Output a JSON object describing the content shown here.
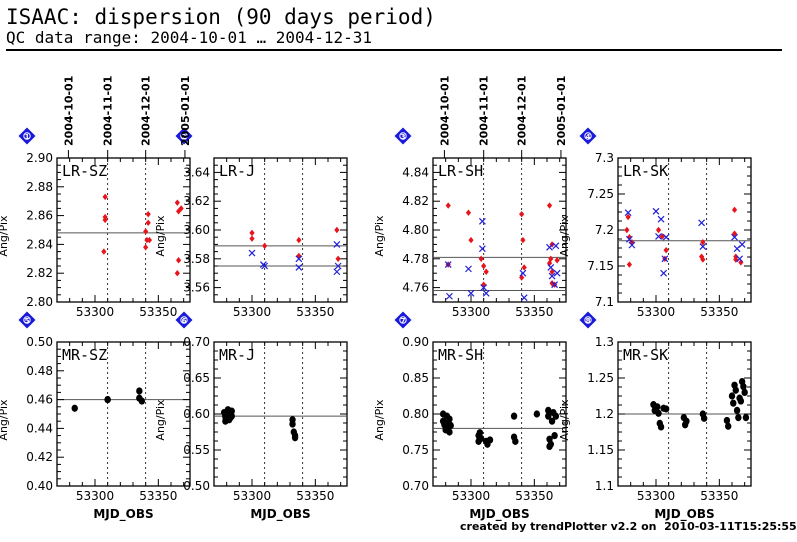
{
  "page": {
    "title": "ISAAC: dispersion (90 days period)",
    "subtitle": "QC data range: 2004-10-01 … 2004-12-31",
    "footer": "created by trendPlotter v2.2 on  2010-03-11T15:25:55"
  },
  "colors": {
    "red": "#e8141c",
    "blue": "#2020d8",
    "black": "#000000",
    "badge": "#1a1adc"
  },
  "chart_data": {
    "type": "scatter",
    "date_axis": {
      "labels": [
        "2004-10-01",
        "2004-11-01",
        "2004-12-01",
        "2005-01-01"
      ],
      "mjd": [
        53279,
        53310,
        53340,
        53371
      ]
    },
    "xlim": [
      53270,
      53375
    ],
    "x_ticks": [
      53300,
      53350
    ],
    "x_minor_step": 10,
    "vlines": [
      53310,
      53340
    ],
    "xlabel": "MJD_OBS",
    "ylabel": "Ang/Pix",
    "panels": [
      {
        "number": "1",
        "label": "LR-SZ",
        "ylim": [
          2.8,
          2.9
        ],
        "yticks": [
          2.8,
          2.82,
          2.84,
          2.86,
          2.88,
          2.9
        ],
        "hlines": [
          2.848
        ],
        "series": [
          {
            "color": "red",
            "marker": "diamond",
            "points": [
              [
                53308,
                2.873
              ],
              [
                53308,
                2.857
              ],
              [
                53308,
                2.859
              ],
              [
                53307,
                2.835
              ],
              [
                53340,
                2.849
              ],
              [
                53342,
                2.861
              ],
              [
                53340,
                2.838
              ],
              [
                53341,
                2.843
              ],
              [
                53343,
                2.843
              ],
              [
                53342,
                2.855
              ],
              [
                53365,
                2.869
              ],
              [
                53366,
                2.863
              ],
              [
                53366,
                2.829
              ],
              [
                53365,
                2.82
              ],
              [
                53368,
                2.865
              ]
            ]
          }
        ]
      },
      {
        "number": "2",
        "label": "LR-J",
        "ylim": [
          3.55,
          3.65
        ],
        "yticks": [
          3.56,
          3.58,
          3.6,
          3.62,
          3.64
        ],
        "hlines": [
          3.589,
          3.575
        ],
        "series": [
          {
            "color": "red",
            "marker": "diamond",
            "points": [
              [
                53300,
                3.598
              ],
              [
                53300,
                3.594
              ],
              [
                53310,
                3.589
              ],
              [
                53337,
                3.593
              ],
              [
                53337,
                3.582
              ],
              [
                53367,
                3.6
              ],
              [
                53368,
                3.58
              ]
            ]
          },
          {
            "color": "blue",
            "marker": "cross",
            "points": [
              [
                53300,
                3.584
              ],
              [
                53310,
                3.575
              ],
              [
                53309,
                3.576
              ],
              [
                53337,
                3.58
              ],
              [
                53337,
                3.574
              ],
              [
                53367,
                3.59
              ],
              [
                53368,
                3.575
              ],
              [
                53367,
                3.571
              ]
            ]
          }
        ]
      },
      {
        "number": "3",
        "label": "LR-SH",
        "ylim": [
          4.75,
          4.85
        ],
        "yticks": [
          4.76,
          4.78,
          4.8,
          4.82,
          4.84
        ],
        "hlines": [
          4.781,
          4.758
        ],
        "series": [
          {
            "color": "red",
            "marker": "diamond",
            "points": [
              [
                53282,
                4.817
              ],
              [
                53282,
                4.776
              ],
              [
                53298,
                4.812
              ],
              [
                53300,
                4.793
              ],
              [
                53308,
                4.78
              ],
              [
                53310,
                4.775
              ],
              [
                53312,
                4.771
              ],
              [
                53310,
                4.762
              ],
              [
                53340,
                4.811
              ],
              [
                53341,
                4.793
              ],
              [
                53342,
                4.774
              ],
              [
                53340,
                4.767
              ],
              [
                53362,
                4.817
              ],
              [
                53364,
                4.79
              ],
              [
                53363,
                4.78
              ],
              [
                53364,
                4.771
              ],
              [
                53362,
                4.777
              ],
              [
                53364,
                4.763
              ],
              [
                53366,
                4.762
              ],
              [
                53368,
                4.779
              ]
            ]
          },
          {
            "color": "blue",
            "marker": "cross",
            "points": [
              [
                53282,
                4.776
              ],
              [
                53283,
                4.754
              ],
              [
                53298,
                4.773
              ],
              [
                53300,
                4.756
              ],
              [
                53309,
                4.806
              ],
              [
                53309,
                4.787
              ],
              [
                53310,
                4.76
              ],
              [
                53312,
                4.756
              ],
              [
                53341,
                4.77
              ],
              [
                53342,
                4.753
              ],
              [
                53362,
                4.788
              ],
              [
                53363,
                4.774
              ],
              [
                53364,
                4.768
              ],
              [
                53366,
                4.762
              ],
              [
                53367,
                4.789
              ],
              [
                53368,
                4.77
              ]
            ]
          }
        ]
      },
      {
        "number": "4",
        "label": "LR-SK",
        "ylim": [
          7.1,
          7.3
        ],
        "yticks": [
          7.1,
          7.15,
          7.2,
          7.25,
          7.3
        ],
        "hlines": [
          7.185
        ],
        "series": [
          {
            "color": "red",
            "marker": "diamond",
            "points": [
              [
                53277,
                7.2
              ],
              [
                53278,
                7.218
              ],
              [
                53279,
                7.19
              ],
              [
                53279,
                7.152
              ],
              [
                53281,
                7.183
              ],
              [
                53302,
                7.2
              ],
              [
                53305,
                7.191
              ],
              [
                53307,
                7.16
              ],
              [
                53308,
                7.172
              ],
              [
                53336,
                7.163
              ],
              [
                53337,
                7.183
              ],
              [
                53337,
                7.159
              ],
              [
                53362,
                7.228
              ],
              [
                53362,
                7.195
              ],
              [
                53363,
                7.163
              ],
              [
                53363,
                7.159
              ],
              [
                53367,
                7.155
              ]
            ]
          },
          {
            "color": "blue",
            "marker": "cross",
            "points": [
              [
                53278,
                7.224
              ],
              [
                53279,
                7.187
              ],
              [
                53281,
                7.179
              ],
              [
                53300,
                7.226
              ],
              [
                53302,
                7.191
              ],
              [
                53304,
                7.215
              ],
              [
                53306,
                7.14
              ],
              [
                53307,
                7.16
              ],
              [
                53308,
                7.19
              ],
              [
                53336,
                7.21
              ],
              [
                53337,
                7.177
              ],
              [
                53362,
                7.19
              ],
              [
                53364,
                7.174
              ],
              [
                53366,
                7.16
              ],
              [
                53368,
                7.18
              ]
            ]
          }
        ]
      },
      {
        "number": "5",
        "label": "MR-SZ",
        "ylim": [
          0.4,
          0.5
        ],
        "yticks": [
          0.4,
          0.42,
          0.44,
          0.46,
          0.48,
          0.5
        ],
        "hlines": [
          0.46
        ],
        "series": [
          {
            "color": "black",
            "marker": "dot",
            "points": [
              [
                53284,
                0.454
              ],
              [
                53310,
                0.46
              ],
              [
                53310,
                0.46
              ],
              [
                53335,
                0.466
              ],
              [
                53335,
                0.461
              ],
              [
                53337,
                0.459
              ]
            ]
          }
        ]
      },
      {
        "number": "6",
        "label": "MR-J",
        "ylim": [
          0.5,
          0.7
        ],
        "yticks": [
          0.5,
          0.55,
          0.6,
          0.65,
          0.7
        ],
        "hlines": [
          0.597
        ],
        "series": [
          {
            "color": "black",
            "marker": "dot",
            "points": [
              [
                53278,
                0.602
              ],
              [
                53279,
                0.596
              ],
              [
                53279,
                0.59
              ],
              [
                53280,
                0.6
              ],
              [
                53281,
                0.593
              ],
              [
                53281,
                0.606
              ],
              [
                53282,
                0.598
              ],
              [
                53282,
                0.592
              ],
              [
                53283,
                0.601
              ],
              [
                53283,
                0.595
              ],
              [
                53284,
                0.604
              ],
              [
                53284,
                0.597
              ],
              [
                53332,
                0.592
              ],
              [
                53332,
                0.586
              ],
              [
                53333,
                0.575
              ],
              [
                53334,
                0.57
              ],
              [
                53334,
                0.567
              ]
            ]
          }
        ]
      },
      {
        "number": "7",
        "label": "MR-SH",
        "ylim": [
          0.7,
          0.9
        ],
        "yticks": [
          0.7,
          0.75,
          0.8,
          0.85,
          0.9
        ],
        "hlines": [
          0.78
        ],
        "series": [
          {
            "color": "black",
            "marker": "dot",
            "points": [
              [
                53278,
                0.8
              ],
              [
                53278,
                0.79
              ],
              [
                53279,
                0.785
              ],
              [
                53280,
                0.778
              ],
              [
                53281,
                0.797
              ],
              [
                53281,
                0.787
              ],
              [
                53282,
                0.782
              ],
              [
                53283,
                0.775
              ],
              [
                53283,
                0.793
              ],
              [
                53284,
                0.784
              ],
              [
                53306,
                0.77
              ],
              [
                53306,
                0.762
              ],
              [
                53307,
                0.774
              ],
              [
                53308,
                0.766
              ],
              [
                53312,
                0.762
              ],
              [
                53313,
                0.758
              ],
              [
                53315,
                0.764
              ],
              [
                53334,
                0.797
              ],
              [
                53334,
                0.768
              ],
              [
                53335,
                0.762
              ],
              [
                53352,
                0.8
              ],
              [
                53361,
                0.805
              ],
              [
                53361,
                0.797
              ],
              [
                53362,
                0.765
              ],
              [
                53362,
                0.755
              ],
              [
                53363,
                0.758
              ],
              [
                53364,
                0.79
              ],
              [
                53365,
                0.802
              ],
              [
                53366,
                0.77
              ],
              [
                53367,
                0.797
              ]
            ]
          }
        ]
      },
      {
        "number": "8",
        "label": "MR-SK",
        "ylim": [
          1.1,
          1.3
        ],
        "yticks": [
          1.1,
          1.15,
          1.2,
          1.25,
          1.3
        ],
        "hlines": [
          1.2
        ],
        "series": [
          {
            "color": "black",
            "marker": "dot",
            "points": [
              [
                53298,
                1.213
              ],
              [
                53299,
                1.205
              ],
              [
                53301,
                1.21
              ],
              [
                53302,
                1.201
              ],
              [
                53303,
                1.187
              ],
              [
                53304,
                1.182
              ],
              [
                53306,
                1.208
              ],
              [
                53308,
                1.207
              ],
              [
                53322,
                1.195
              ],
              [
                53323,
                1.185
              ],
              [
                53324,
                1.19
              ],
              [
                53337,
                1.2
              ],
              [
                53338,
                1.194
              ],
              [
                53356,
                1.191
              ],
              [
                53357,
                1.183
              ],
              [
                53360,
                1.225
              ],
              [
                53361,
                1.215
              ],
              [
                53362,
                1.24
              ],
              [
                53363,
                1.233
              ],
              [
                53364,
                1.205
              ],
              [
                53365,
                1.195
              ],
              [
                53366,
                1.222
              ],
              [
                53367,
                1.218
              ],
              [
                53368,
                1.245
              ],
              [
                53369,
                1.238
              ],
              [
                53370,
                1.23
              ],
              [
                53371,
                1.195
              ]
            ]
          }
        ]
      }
    ]
  }
}
